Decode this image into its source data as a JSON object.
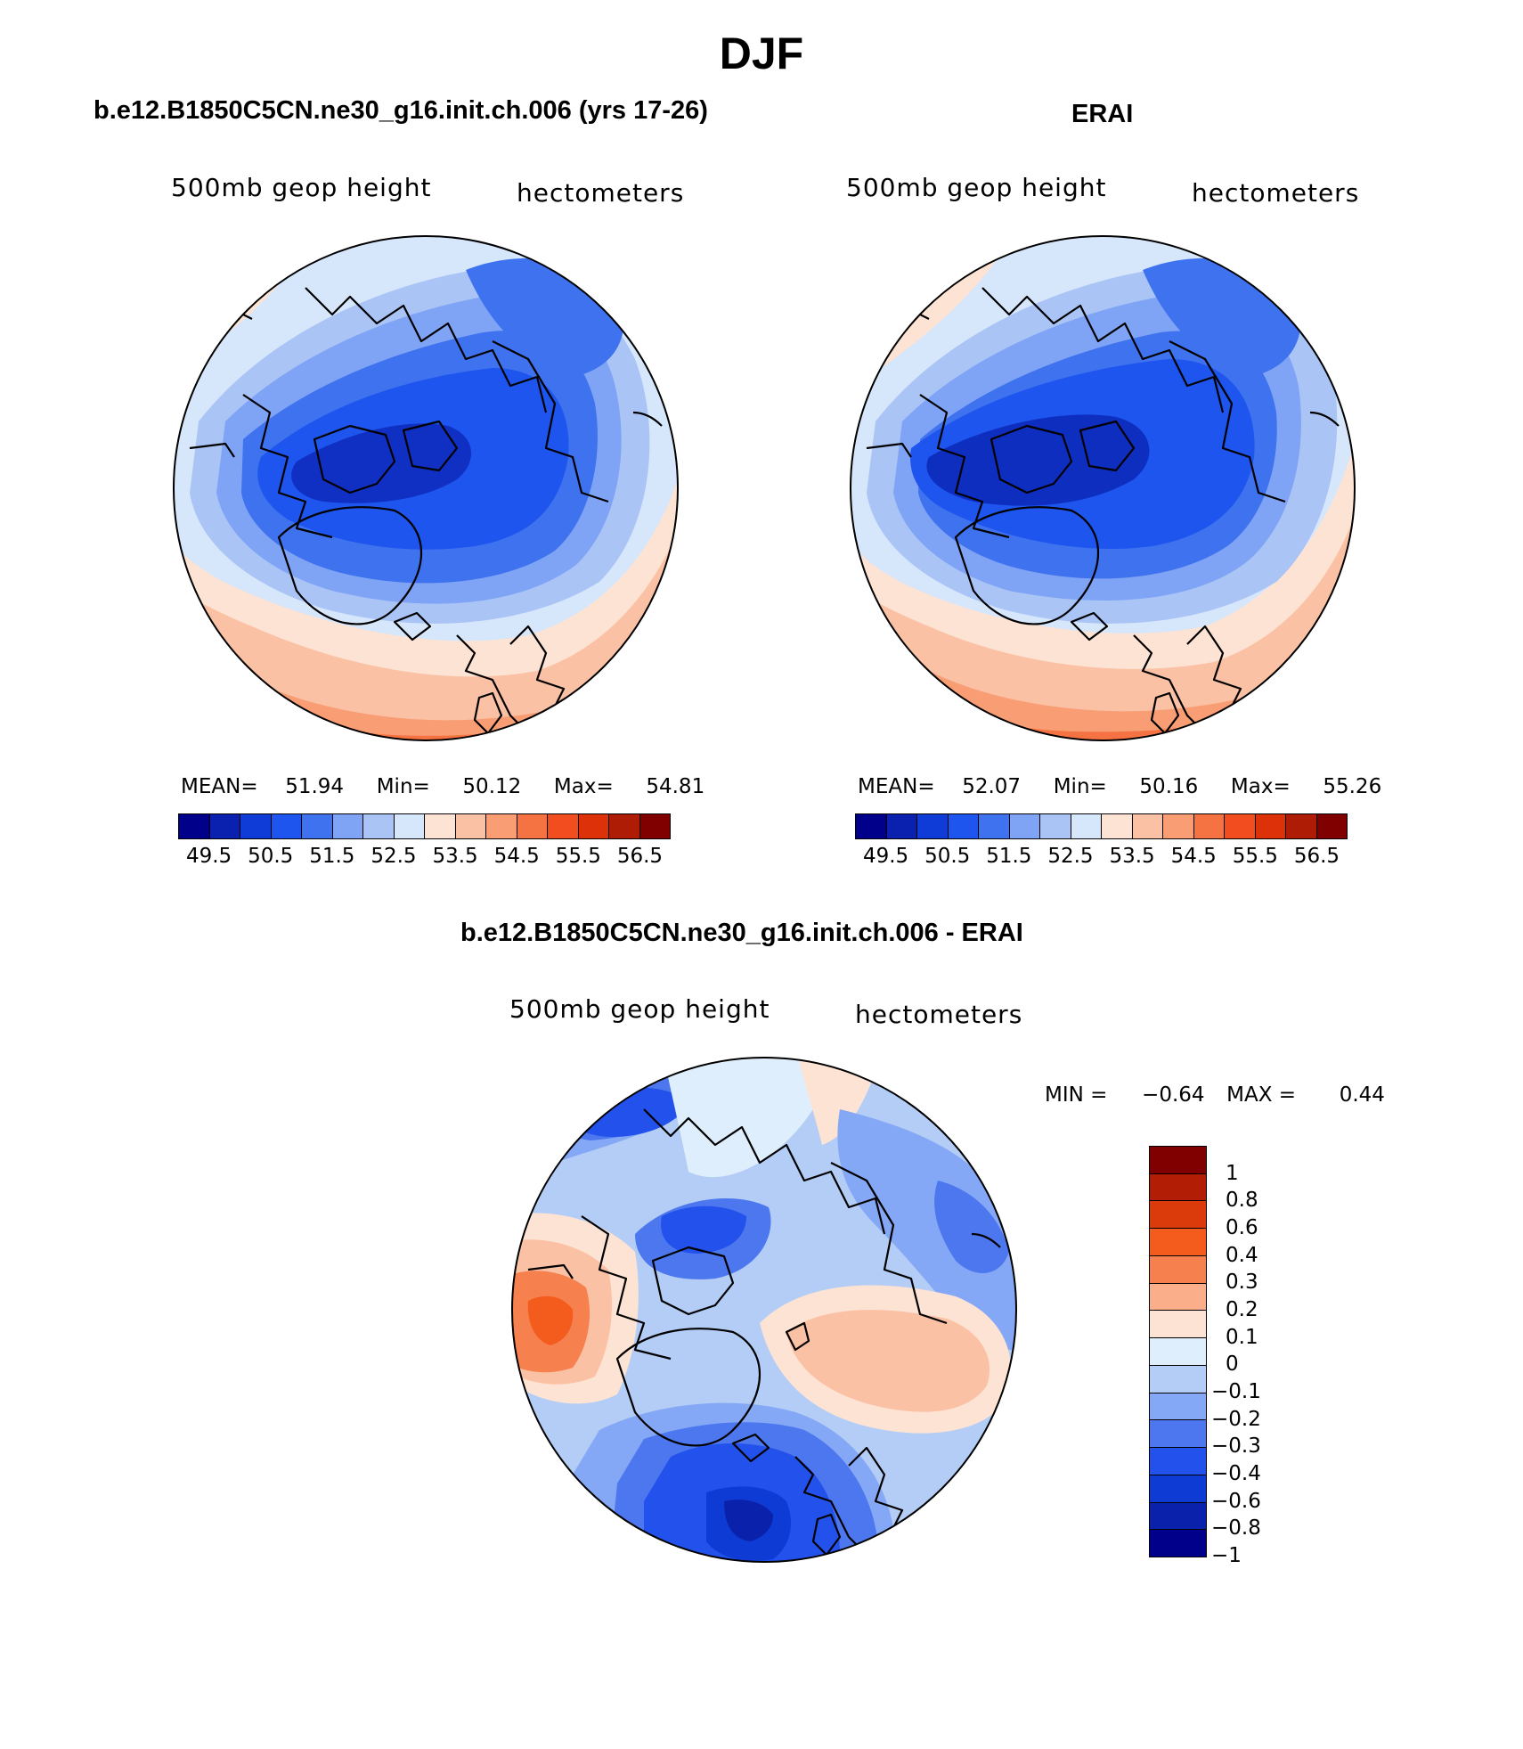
{
  "title": "DJF",
  "panels": {
    "model": {
      "title": "b.e12.B1850C5CN.ne30_g16.init.ch.006 (yrs 17-26)",
      "left_string": "500mb geop height",
      "right_string": "hectometers",
      "mean_label": "MEAN=",
      "mean_value": "51.94",
      "min_label": "Min=",
      "min_value": "50.12",
      "max_label": "Max=",
      "max_value": "54.81"
    },
    "obs": {
      "title": "ERAI",
      "left_string": "500mb geop height",
      "right_string": "hectometers",
      "mean_label": "MEAN=",
      "mean_value": "52.07",
      "min_label": "Min=",
      "min_value": "50.16",
      "max_label": "Max=",
      "max_value": "55.26"
    },
    "diff": {
      "title": "b.e12.B1850C5CN.ne30_g16.init.ch.006 - ERAI",
      "left_string": "500mb geop height",
      "right_string": "hectometers",
      "min_label": "MIN =",
      "min_value": "−0.64",
      "max_label": "MAX =",
      "max_value": "0.44"
    }
  },
  "colorbar_field": {
    "colors": [
      "#00008b",
      "#0a21b0",
      "#0f3cd6",
      "#1d55ee",
      "#3f72ee",
      "#7fa4f5",
      "#aac4f6",
      "#d6e6fb",
      "#fde3d3",
      "#fbc1a4",
      "#f89d74",
      "#f57342",
      "#f24d1f",
      "#dd3209",
      "#ae1c06",
      "#800000"
    ],
    "tick_labels": [
      "49.5",
      "50.5",
      "51.5",
      "52.5",
      "53.5",
      "54.5",
      "55.5",
      "56.5"
    ]
  },
  "colorbar_diff": {
    "colors": [
      "#800000",
      "#b11e05",
      "#db3b0a",
      "#f35c1c",
      "#f7814e",
      "#fbae8a",
      "#fde3d3",
      "#dfeefc",
      "#b3cdf6",
      "#84a8f5",
      "#4d77ee",
      "#2351ec",
      "#0f3bd5",
      "#0a21ac",
      "#00008b"
    ],
    "tick_labels": [
      "1",
      "0.8",
      "0.6",
      "0.4",
      "0.3",
      "0.2",
      "0.1",
      "0",
      "−0.1",
      "−0.2",
      "−0.3",
      "−0.4",
      "−0.6",
      "−0.8",
      "−1"
    ]
  },
  "map_colors": {
    "blue_deep": "#0a21b0",
    "blue_strong": "#1d55ee",
    "blue_mid": "#3f72ee",
    "blue_light": "#7fa4f5",
    "blue_pale": "#aac4f6",
    "blue_faint": "#d6e6fb",
    "red_faint": "#fde3d3",
    "red_pale": "#fbc1a4",
    "red_light": "#f89d74",
    "red_mid": "#f57342",
    "red_strong": "#f24d1f"
  }
}
